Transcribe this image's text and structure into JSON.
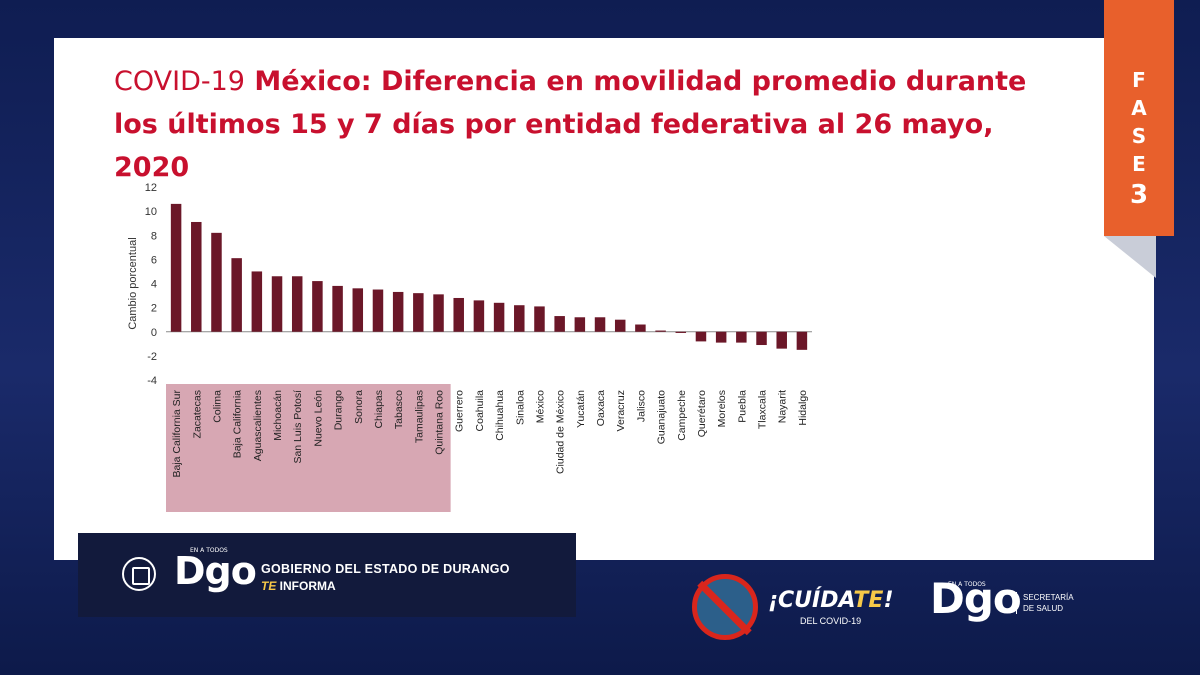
{
  "slide": {
    "title_part1": "COVID-19",
    "title_part2": " México: Diferencia en movilidad promedio durante",
    "title_line2": "los últimos 15 y 7 días por entidad federativa al 26 mayo, 2020"
  },
  "fase": {
    "label": "FASE",
    "number": "3",
    "color": "#e8602c"
  },
  "chart_data": {
    "type": "bar",
    "title": "",
    "xlabel": "",
    "ylabel": "Cambio porcentual",
    "ylim": [
      -4,
      12
    ],
    "yticks": [
      -4,
      -2,
      0,
      2,
      4,
      6,
      8,
      10,
      12
    ],
    "bar_color": "#6b1728",
    "highlight_color": "#c98a99",
    "highlight_range": [
      0,
      13
    ],
    "grid": false,
    "categories": [
      "Baja California Sur",
      "Zacatecas",
      "Colima",
      "Baja California",
      "Aguascalientes",
      "Michoacán",
      "San Luis Potosí",
      "Nuevo León",
      "Durango",
      "Sonora",
      "Chiapas",
      "Tabasco",
      "Tamaulipas",
      "Quintana Roo",
      "Guerrero",
      "Coahuila",
      "Chihuahua",
      "Sinaloa",
      "México",
      "Ciudad de México",
      "Yucatán",
      "Oaxaca",
      "Veracruz",
      "Jalisco",
      "Guanajuato",
      "Campeche",
      "Querétaro",
      "Morelos",
      "Puebla",
      "Tlaxcala",
      "Nayarit",
      "Hidalgo"
    ],
    "values": [
      10.6,
      9.1,
      8.2,
      6.1,
      5.0,
      4.6,
      4.6,
      4.2,
      3.8,
      3.6,
      3.5,
      3.3,
      3.2,
      3.1,
      2.8,
      2.6,
      2.4,
      2.2,
      2.1,
      1.3,
      1.2,
      1.2,
      1.0,
      0.6,
      0.1,
      -0.1,
      -0.8,
      -0.9,
      -0.9,
      -1.1,
      -1.4,
      -1.5
    ]
  },
  "footer": {
    "dgo_small": "EN A TODOS",
    "dgo_logo": "Dgo",
    "gobierno": "GOBIERNO DEL ESTADO DE DURANGO",
    "te": "TE",
    "informa": " INFORMA",
    "cuidate_main": "¡CUÍDA",
    "cuidate_te": "TE",
    "cuidate_end": "!",
    "del_covid": "DEL COVID-19",
    "dgo_right_small": "EN A TODOS",
    "dgo_right": "Dgo",
    "secretaria_1": "SECRETARÍA",
    "secretaria_2": "DE SALUD"
  }
}
